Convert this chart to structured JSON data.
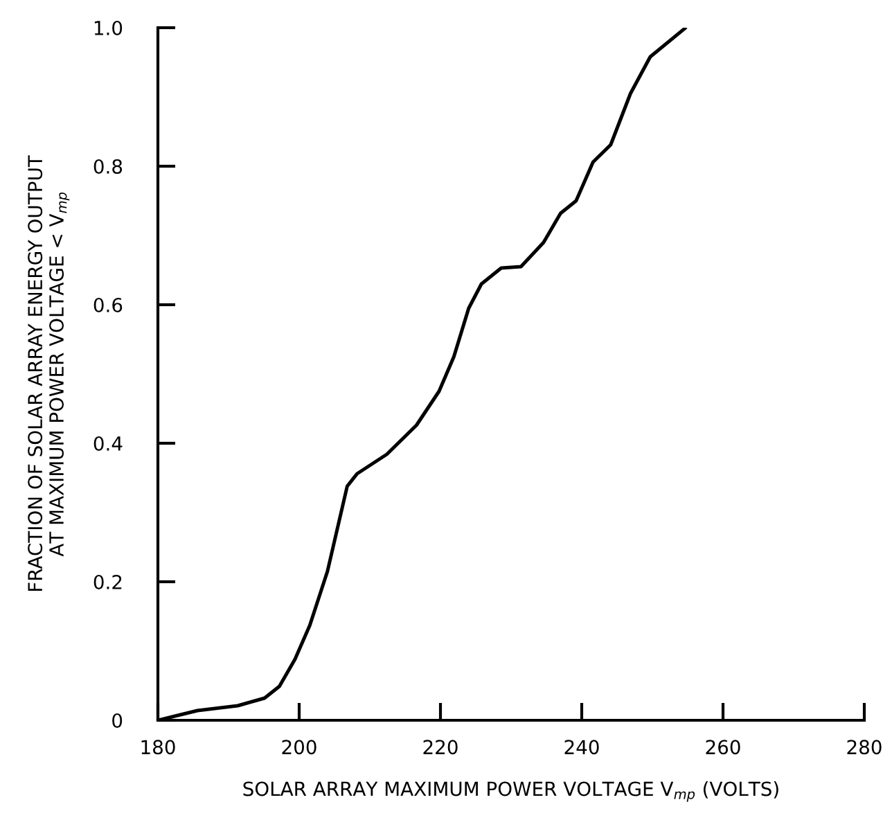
{
  "chart_data": {
    "type": "line",
    "xlabel": "SOLAR ARRAY MAXIMUM POWER VOLTAGE V$_{mp}$ (VOLTS)",
    "ylabel": "FRACTION OF SOLAR ARRAY ENERGY OUTPUT\nAT MAXIMUM POWER VOLTAGE < V$_{mp}$",
    "xlim": [
      180,
      280
    ],
    "xticks": [
      180,
      200,
      220,
      240,
      260,
      280
    ],
    "ylim": [
      0,
      1
    ],
    "yticks": [
      0,
      0.2,
      0.4,
      0.6,
      0.8,
      {
        "value": 1,
        "label": "1.0"
      }
    ],
    "grid": false,
    "legend": false,
    "marker": "none",
    "line_style": "solid",
    "series": [
      {
        "color": "#000000",
        "x": [
          180,
          185.6,
          191.3,
          195.1,
          197.2,
          199.4,
          201.5,
          204.0,
          206.8,
          208.2,
          212.4,
          216.6,
          219.8,
          221.9,
          224.0,
          225.8,
          228.6,
          231.4,
          234.6,
          237.0,
          239.2,
          241.6,
          244.1,
          246.9,
          249.7,
          254.6
        ],
        "values": [
          0,
          0.014,
          0.021,
          0.032,
          0.049,
          0.088,
          0.137,
          0.215,
          0.338,
          0.356,
          0.384,
          0.426,
          0.475,
          0.525,
          0.595,
          0.63,
          0.653,
          0.655,
          0.69,
          0.732,
          0.75,
          0.806,
          0.831,
          0.905,
          0.958,
          0.999
        ]
      }
    ]
  }
}
